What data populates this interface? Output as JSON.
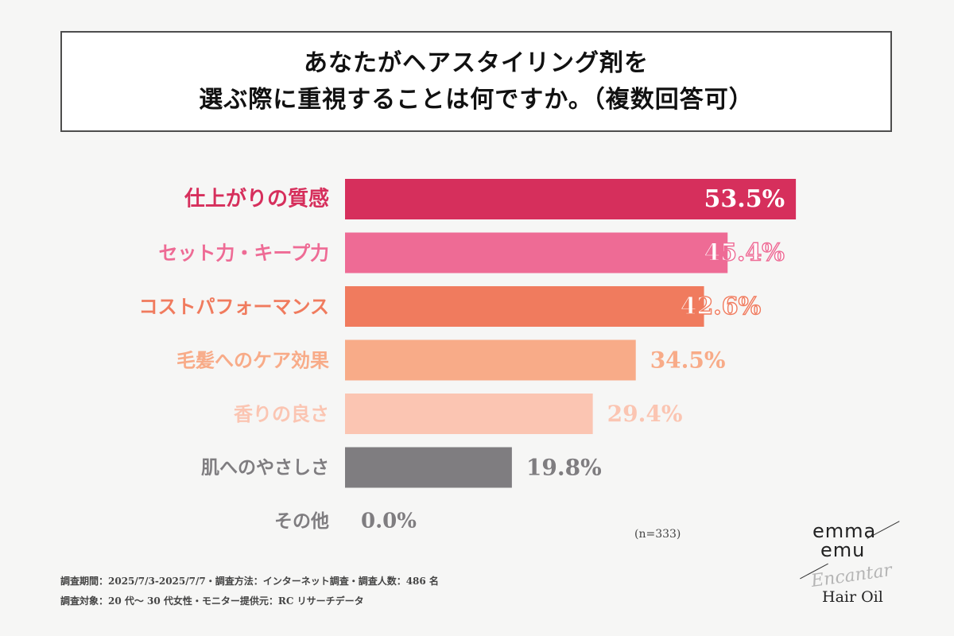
{
  "title": {
    "line1": "あなたがヘアスタイリング剤を",
    "line2": "選ぶ際に重視することは何ですか。（複数回答可）"
  },
  "chart_data": {
    "type": "bar",
    "orientation": "horizontal",
    "categories": [
      "仕上がりの質感",
      "セット力・キープ力",
      "コストパフォーマンス",
      "毛髪へのケア効果",
      "香りの良さ",
      "肌へのやさしさ",
      "その他"
    ],
    "values": [
      53.5,
      45.4,
      42.6,
      34.5,
      29.4,
      19.8,
      0.0
    ],
    "value_labels": [
      "53.5%",
      "45.4%",
      "42.6%",
      "34.5%",
      "29.4%",
      "19.8%",
      "0.0%"
    ],
    "colors": [
      "#d62f5c",
      "#ee6b95",
      "#f07b5e",
      "#f8ab88",
      "#fbc5b2",
      "#7f7d80",
      "#7f7d80"
    ],
    "xlim": [
      0,
      100
    ],
    "grid": false,
    "legend": "none",
    "note": "(n=333)"
  },
  "footer": {
    "line1": "調査期間：2025/7/3-2025/7/7・調査方法：インターネット調査・調査人数：486 名",
    "line2": "調査対象：20 代〜 30 代女性・モニター提供元：RC リサーチデータ"
  },
  "brand": {
    "line1": "emma",
    "line2": "emu",
    "script": "Encantar",
    "product": "Hair Oil"
  }
}
